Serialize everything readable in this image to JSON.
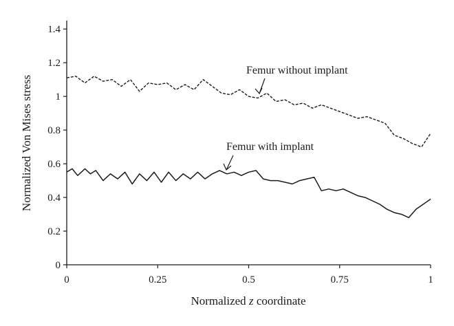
{
  "chart_data": {
    "type": "line",
    "title": "",
    "xlabel": "Normalized z coordinate",
    "xlabel_prefix": "Normalized ",
    "xlabel_var": "z",
    "xlabel_suffix": " coordinate",
    "ylabel": "Normalized Von Mises stress",
    "xlim": [
      0,
      1
    ],
    "ylim": [
      0,
      1.45
    ],
    "x_ticks": [
      0,
      0.25,
      0.5,
      0.75,
      1
    ],
    "x_tick_labels": [
      "0",
      "0.25",
      "0.5",
      "0.75",
      "1"
    ],
    "y_ticks": [
      0,
      0.2,
      0.4,
      0.6,
      0.8,
      1,
      1.2,
      1.4
    ],
    "y_tick_labels": [
      "0",
      "0.2",
      "0.4",
      "0.6",
      "0.8",
      "1",
      "1.2",
      "1.4"
    ],
    "grid": false,
    "legend": "none",
    "series": [
      {
        "name": "Femur without implant",
        "style": "dashed",
        "x": [
          0,
          0.025,
          0.05,
          0.075,
          0.1,
          0.125,
          0.15,
          0.175,
          0.2,
          0.225,
          0.25,
          0.275,
          0.3,
          0.325,
          0.35,
          0.375,
          0.4,
          0.425,
          0.45,
          0.475,
          0.5,
          0.525,
          0.55,
          0.575,
          0.6,
          0.625,
          0.65,
          0.675,
          0.7,
          0.725,
          0.75,
          0.775,
          0.8,
          0.825,
          0.85,
          0.875,
          0.9,
          0.925,
          0.95,
          0.975,
          1
        ],
        "y": [
          1.11,
          1.12,
          1.08,
          1.12,
          1.09,
          1.1,
          1.06,
          1.1,
          1.03,
          1.08,
          1.07,
          1.08,
          1.04,
          1.07,
          1.04,
          1.1,
          1.06,
          1.02,
          1.01,
          1.04,
          1.0,
          0.99,
          1.02,
          0.97,
          0.98,
          0.95,
          0.96,
          0.93,
          0.95,
          0.93,
          0.91,
          0.89,
          0.87,
          0.88,
          0.86,
          0.84,
          0.77,
          0.75,
          0.72,
          0.7,
          0.78
        ]
      },
      {
        "name": "Femur with implant",
        "style": "solid",
        "x": [
          0,
          0.015,
          0.03,
          0.05,
          0.065,
          0.08,
          0.1,
          0.12,
          0.14,
          0.16,
          0.18,
          0.2,
          0.22,
          0.24,
          0.26,
          0.28,
          0.3,
          0.32,
          0.34,
          0.36,
          0.38,
          0.4,
          0.42,
          0.44,
          0.46,
          0.48,
          0.5,
          0.52,
          0.54,
          0.56,
          0.58,
          0.6,
          0.62,
          0.64,
          0.66,
          0.68,
          0.7,
          0.72,
          0.74,
          0.76,
          0.78,
          0.8,
          0.82,
          0.84,
          0.86,
          0.88,
          0.9,
          0.92,
          0.94,
          0.96,
          0.98,
          1
        ],
        "y": [
          0.55,
          0.57,
          0.53,
          0.57,
          0.54,
          0.56,
          0.5,
          0.54,
          0.51,
          0.55,
          0.48,
          0.54,
          0.5,
          0.55,
          0.49,
          0.55,
          0.5,
          0.54,
          0.51,
          0.55,
          0.51,
          0.54,
          0.56,
          0.54,
          0.55,
          0.53,
          0.55,
          0.56,
          0.51,
          0.5,
          0.5,
          0.49,
          0.48,
          0.5,
          0.51,
          0.52,
          0.44,
          0.45,
          0.44,
          0.45,
          0.43,
          0.41,
          0.4,
          0.38,
          0.36,
          0.33,
          0.31,
          0.3,
          0.28,
          0.33,
          0.36,
          0.39
        ]
      }
    ],
    "annotations": [
      {
        "text": "Femur without implant",
        "points_to_series": 0
      },
      {
        "text": "Femur with implant",
        "points_to_series": 1
      }
    ]
  },
  "colors": {
    "line": "#1a1a1a",
    "background": "#ffffff"
  }
}
